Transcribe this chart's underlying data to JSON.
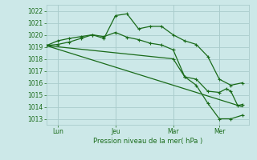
{
  "background_color": "#cce8e8",
  "grid_color": "#aacccc",
  "line_color": "#1a6b1a",
  "ylabel": "Pression niveau de la mer( hPa )",
  "ylim": [
    1012.5,
    1022.5
  ],
  "yticks": [
    1013,
    1014,
    1015,
    1016,
    1017,
    1018,
    1019,
    1020,
    1021,
    1022
  ],
  "xtick_labels": [
    "Lun",
    "Jeu",
    "Mar",
    "Mer"
  ],
  "xtick_positions": [
    0.5,
    3.0,
    5.5,
    7.5
  ],
  "xlim": [
    0.0,
    8.8
  ],
  "series1_x": [
    0.0,
    0.5,
    1.0,
    1.5,
    2.0,
    2.5,
    3.0,
    3.5,
    4.0,
    4.5,
    5.0,
    5.5,
    6.0,
    6.5,
    7.0,
    7.5,
    8.0,
    8.5
  ],
  "series1_y": [
    1019.1,
    1019.5,
    1019.7,
    1019.85,
    1020.0,
    1019.7,
    1021.6,
    1021.75,
    1020.5,
    1020.7,
    1020.7,
    1020.0,
    1019.5,
    1019.2,
    1018.2,
    1016.3,
    1015.8,
    1016.0
  ],
  "series2_x": [
    0.0,
    0.5,
    1.0,
    1.5,
    2.0,
    2.5,
    3.0,
    3.5,
    4.0,
    4.5,
    5.0,
    5.5,
    6.0,
    6.5,
    7.0,
    7.5,
    8.0,
    8.5
  ],
  "series2_y": [
    1019.1,
    1019.2,
    1019.4,
    1019.7,
    1020.0,
    1019.85,
    1020.2,
    1019.8,
    1019.6,
    1019.3,
    1019.15,
    1018.75,
    1016.5,
    1015.8,
    1014.3,
    1013.0,
    1013.0,
    1013.3
  ],
  "series3_x": [
    0.0,
    8.5
  ],
  "series3_y": [
    1019.1,
    1014.0
  ],
  "series4_x": [
    0.0,
    5.5,
    6.0,
    6.5,
    7.0,
    7.5,
    7.8,
    8.0,
    8.3,
    8.5
  ],
  "series4_y": [
    1019.1,
    1018.0,
    1016.5,
    1016.3,
    1015.3,
    1015.2,
    1015.5,
    1015.3,
    1014.1,
    1014.2
  ]
}
